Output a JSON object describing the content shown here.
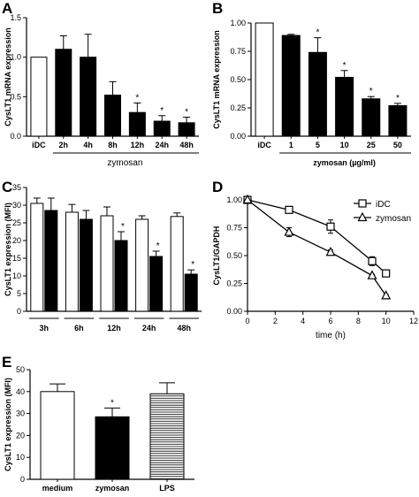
{
  "chart_data": [
    {
      "panel": "A",
      "type": "bar",
      "ylabel": "CysLT1 mRNA expression",
      "xlabel": "zymosan",
      "categories": [
        "iDC",
        "2h",
        "4h",
        "8h",
        "12h",
        "24h",
        "48h"
      ],
      "values": [
        1.0,
        1.1,
        1.0,
        0.52,
        0.3,
        0.19,
        0.17
      ],
      "errors": [
        0.0,
        0.17,
        0.29,
        0.17,
        0.12,
        0.07,
        0.07
      ],
      "fill": [
        "white",
        "black",
        "black",
        "black",
        "black",
        "black",
        "black"
      ],
      "significant": [
        false,
        false,
        false,
        false,
        true,
        true,
        true
      ],
      "ylim": [
        0,
        1.5
      ],
      "yticks": [
        "0.0",
        "0.5",
        "1.0",
        "1.5"
      ],
      "marker": "*"
    },
    {
      "panel": "B",
      "type": "bar",
      "ylabel": "CysLT1 mRNA expression",
      "xlabel": "zymosan (µg/ml)",
      "categories": [
        "iDC",
        "1",
        "5",
        "10",
        "25",
        "50"
      ],
      "values": [
        1.0,
        0.89,
        0.74,
        0.52,
        0.33,
        0.27
      ],
      "errors": [
        0.0,
        0.01,
        0.13,
        0.06,
        0.02,
        0.02
      ],
      "fill": [
        "white",
        "black",
        "black",
        "black",
        "black",
        "black"
      ],
      "significant": [
        false,
        false,
        true,
        true,
        true,
        true
      ],
      "ylim": [
        0,
        1.0
      ],
      "yticks": [
        "0.00",
        "0.25",
        "0.50",
        "0.75",
        "1.00"
      ],
      "marker": "*"
    },
    {
      "panel": "C",
      "type": "bar",
      "ylabel": "CysLT1 expression (MFI)",
      "groups": [
        "3h",
        "6h",
        "12h",
        "24h",
        "48h"
      ],
      "series": [
        {
          "fill": "white",
          "values": [
            30.5,
            28.0,
            27.0,
            26.0,
            26.8
          ],
          "errors": [
            1.5,
            2.2,
            2.5,
            1.0,
            1.0
          ]
        },
        {
          "fill": "black",
          "values": [
            28.5,
            26.0,
            20.0,
            15.5,
            10.5
          ],
          "errors": [
            3.5,
            2.5,
            2.5,
            1.5,
            1.2
          ]
        }
      ],
      "significant": [
        false,
        false,
        true,
        true,
        true
      ],
      "ylim": [
        0,
        35
      ],
      "yticks": [
        "0",
        "5",
        "10",
        "15",
        "20",
        "25",
        "30",
        "35"
      ],
      "marker": "*"
    },
    {
      "panel": "D",
      "type": "line",
      "ylabel": "CysLT1/GAPDH",
      "xlabel": "time (h)",
      "xlim": [
        0,
        12
      ],
      "ylim": [
        0,
        1.0
      ],
      "xticks": [
        "0",
        "2",
        "4",
        "6",
        "8",
        "10",
        "12"
      ],
      "yticks": [
        "0.00",
        "0.25",
        "0.50",
        "0.75",
        "1.00"
      ],
      "legend_position": "top-right",
      "series": [
        {
          "name": "iDC",
          "marker": "square",
          "x": [
            0,
            3,
            6,
            9,
            10
          ],
          "y": [
            1.0,
            0.91,
            0.76,
            0.45,
            0.34
          ],
          "errors": [
            0.0,
            0.01,
            0.06,
            0.04,
            0.02
          ]
        },
        {
          "name": "zymosan",
          "marker": "triangle",
          "x": [
            0,
            3,
            6,
            9,
            10
          ],
          "y": [
            1.0,
            0.71,
            0.53,
            0.32,
            0.14
          ],
          "errors": [
            0.0,
            0.04,
            0.02,
            0.01,
            0.01
          ]
        }
      ]
    },
    {
      "panel": "E",
      "type": "bar",
      "ylabel": "CysLT1 expression (MFI)",
      "categories": [
        "medium",
        "zymosan",
        "LPS"
      ],
      "values": [
        40.0,
        28.5,
        39.0
      ],
      "errors": [
        3.5,
        4.0,
        5.0
      ],
      "fill": [
        "white",
        "black",
        "hatched"
      ],
      "significant": [
        false,
        true,
        false
      ],
      "ylim": [
        0,
        50
      ],
      "yticks": [
        "0",
        "10",
        "20",
        "30",
        "40",
        "50"
      ],
      "marker": "*"
    }
  ]
}
